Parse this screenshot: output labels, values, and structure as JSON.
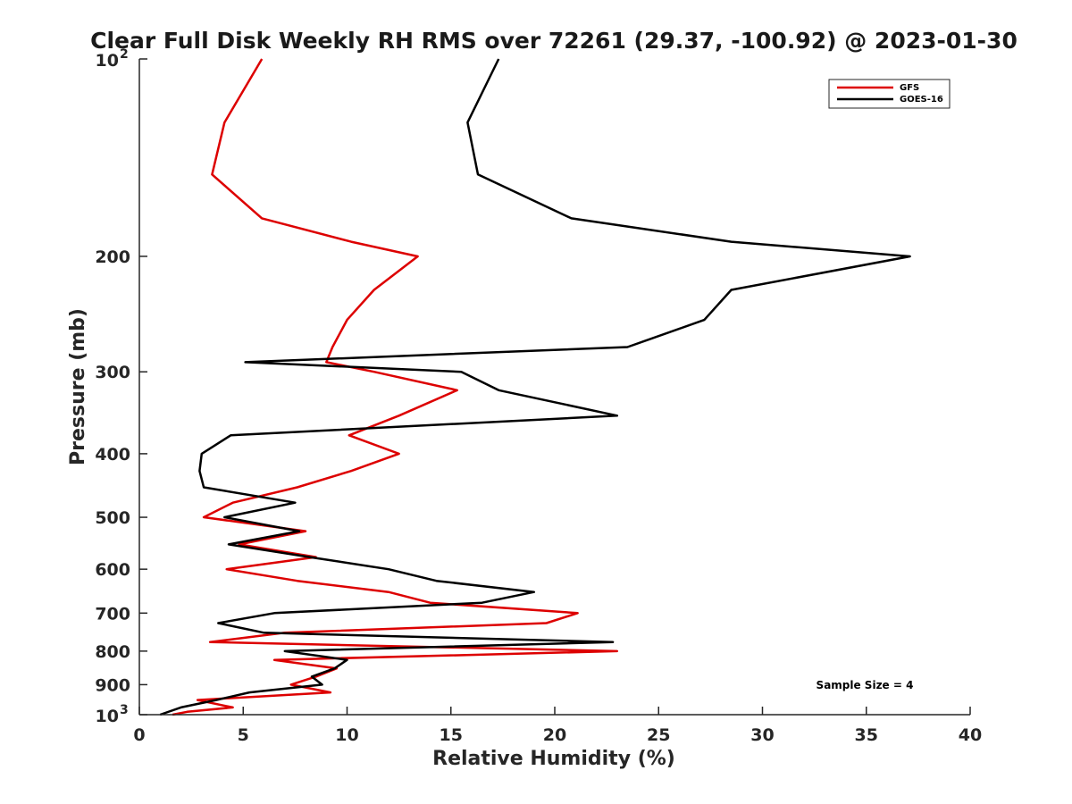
{
  "chart_data": {
    "type": "line",
    "title": "Clear Full Disk Weekly RH RMS over 72261 (29.37, -100.92) @ 2023-01-30",
    "xlabel": "Relative Humidity (%)",
    "ylabel": "Pressure (mb)",
    "xlim": [
      0,
      40
    ],
    "ylim": [
      100,
      1000
    ],
    "y_scale": "log",
    "y_reversed": true,
    "x_ticks": [
      "0",
      "5",
      "10",
      "15",
      "20",
      "25",
      "30",
      "35",
      "40"
    ],
    "y_ticks": [
      {
        "value": 200,
        "label": "200"
      },
      {
        "value": 300,
        "label": "300"
      },
      {
        "value": 400,
        "label": "400"
      },
      {
        "value": 500,
        "label": "500"
      },
      {
        "value": 600,
        "label": "600"
      },
      {
        "value": 700,
        "label": "700"
      },
      {
        "value": 800,
        "label": "800"
      },
      {
        "value": 900,
        "label": "900"
      }
    ],
    "y_edge_labels": {
      "top_base": "10",
      "top_exp": "2",
      "bottom_base": "10",
      "bottom_exp": "3"
    },
    "grid": false,
    "legend_position": "top-right",
    "annotation": "Sample Size = 4",
    "series": [
      {
        "name": "GFS",
        "color": "#dd0000",
        "points": [
          [
            5.9,
            100
          ],
          [
            4.1,
            125
          ],
          [
            3.5,
            150
          ],
          [
            5.9,
            175
          ],
          [
            10.2,
            190
          ],
          [
            13.4,
            200
          ],
          [
            11.3,
            225
          ],
          [
            10.0,
            250
          ],
          [
            9.3,
            275
          ],
          [
            9.0,
            290
          ],
          [
            11.3,
            300
          ],
          [
            15.3,
            320
          ],
          [
            12.5,
            350
          ],
          [
            10.1,
            375
          ],
          [
            12.5,
            400
          ],
          [
            10.2,
            425
          ],
          [
            7.6,
            450
          ],
          [
            4.5,
            475
          ],
          [
            3.1,
            500
          ],
          [
            8.0,
            525
          ],
          [
            4.8,
            550
          ],
          [
            8.5,
            575
          ],
          [
            4.2,
            600
          ],
          [
            7.6,
            625
          ],
          [
            12.0,
            650
          ],
          [
            14.0,
            675
          ],
          [
            21.1,
            700
          ],
          [
            19.6,
            725
          ],
          [
            7.0,
            750
          ],
          [
            3.4,
            775
          ],
          [
            23.0,
            800
          ],
          [
            6.5,
            825
          ],
          [
            9.5,
            850
          ],
          [
            8.5,
            875
          ],
          [
            7.3,
            900
          ],
          [
            9.2,
            925
          ],
          [
            2.8,
            950
          ],
          [
            4.5,
            975
          ],
          [
            2.3,
            990
          ],
          [
            1.6,
            1000
          ]
        ]
      },
      {
        "name": "GOES-16",
        "color": "#000000",
        "points": [
          [
            17.3,
            100
          ],
          [
            15.8,
            125
          ],
          [
            16.3,
            150
          ],
          [
            20.8,
            175
          ],
          [
            28.5,
            190
          ],
          [
            37.1,
            200
          ],
          [
            28.5,
            225
          ],
          [
            27.2,
            250
          ],
          [
            23.5,
            275
          ],
          [
            5.1,
            290
          ],
          [
            15.5,
            300
          ],
          [
            17.3,
            320
          ],
          [
            23.0,
            350
          ],
          [
            4.4,
            375
          ],
          [
            3.0,
            400
          ],
          [
            2.9,
            425
          ],
          [
            3.1,
            450
          ],
          [
            7.5,
            475
          ],
          [
            4.1,
            500
          ],
          [
            7.7,
            525
          ],
          [
            4.3,
            550
          ],
          [
            8.2,
            575
          ],
          [
            12.0,
            600
          ],
          [
            14.3,
            625
          ],
          [
            19.0,
            650
          ],
          [
            16.5,
            675
          ],
          [
            6.5,
            700
          ],
          [
            3.8,
            725
          ],
          [
            6.0,
            750
          ],
          [
            22.8,
            775
          ],
          [
            7.0,
            800
          ],
          [
            10.0,
            825
          ],
          [
            9.4,
            850
          ],
          [
            8.3,
            875
          ],
          [
            8.8,
            900
          ],
          [
            5.3,
            925
          ],
          [
            3.7,
            950
          ],
          [
            2.0,
            975
          ],
          [
            1.0,
            1000
          ]
        ]
      }
    ]
  }
}
